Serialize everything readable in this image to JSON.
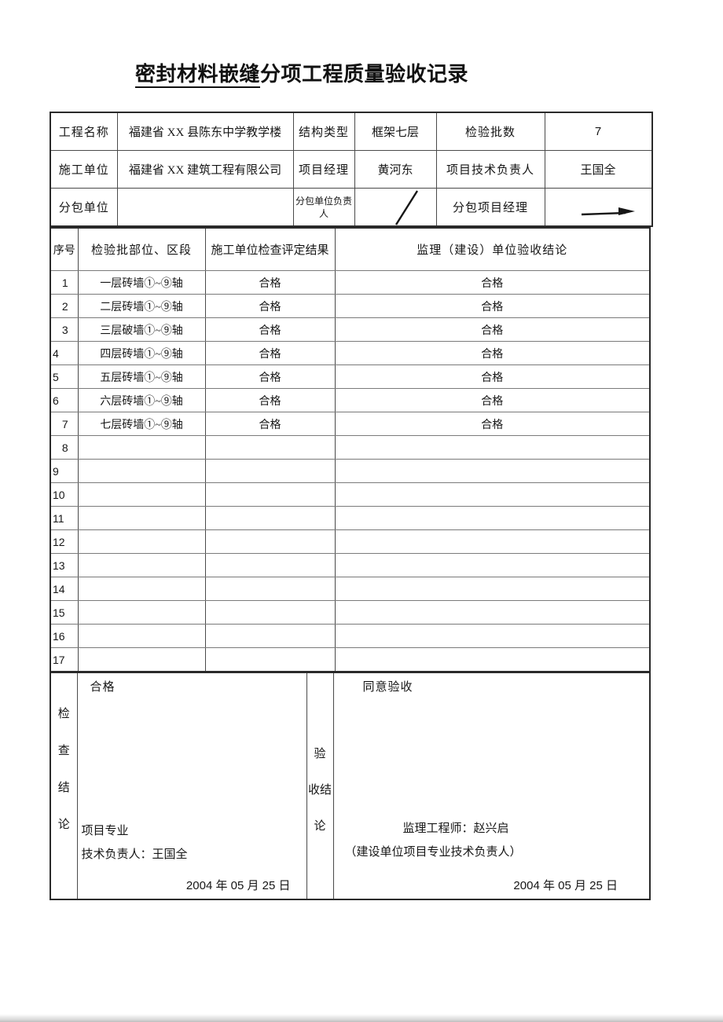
{
  "title": {
    "underlined": "密封材料嵌缝",
    "rest": "分项工程质量验收记录"
  },
  "info": {
    "row1": {
      "label1": "工程名称",
      "value1": "福建省 XX 县陈东中学教学楼",
      "label2": "结构类型",
      "value2": "框架七层",
      "label3": "检验批数",
      "value3": "7"
    },
    "row2": {
      "label1": "施工单位",
      "value1": "福建省 XX 建筑工程有限公司",
      "label2": "项目经理",
      "value2": "黄河东",
      "label3": "项目技术负责人",
      "value3": "王国全"
    },
    "row3": {
      "label1": "分包单位",
      "value1": "",
      "label2": "分包单位负责人",
      "value2": "",
      "label3": "分包项目经理",
      "value3": ""
    },
    "marks": {
      "subcontract_leader_mark": "hand-drawn slash",
      "subcontract_manager_mark": "hand-drawn stroke"
    }
  },
  "batch_table": {
    "headers": [
      "序号",
      "检验批部位、区段",
      "施工单位检查评定结果",
      "监理（建设）单位验收结论"
    ],
    "rows": [
      {
        "num": "1",
        "part": "一层砖墙①~⑨轴",
        "result": "合格",
        "conclusion": "合格",
        "num_align": "center"
      },
      {
        "num": "2",
        "part": "二层砖墙①~⑨轴",
        "result": "合格",
        "conclusion": "合格",
        "num_align": "center"
      },
      {
        "num": "3",
        "part": "三层破墙①~⑨轴",
        "result": "合格",
        "conclusion": "合格",
        "num_align": "center"
      },
      {
        "num": "4",
        "part": "四层砖墙①~⑨轴",
        "result": "合格",
        "conclusion": "合格",
        "num_align": "left"
      },
      {
        "num": "5",
        "part": "五层砖墙①~⑨轴",
        "result": "合格",
        "conclusion": "合格",
        "num_align": "left"
      },
      {
        "num": "6",
        "part": "六层砖墙①~⑨轴",
        "result": "合格",
        "conclusion": "合格",
        "num_align": "left"
      },
      {
        "num": "7",
        "part": "七层砖墙①~⑨轴",
        "result": "合格",
        "conclusion": "合格",
        "num_align": "center"
      },
      {
        "num": "8",
        "part": "",
        "result": "",
        "conclusion": "",
        "num_align": "center"
      },
      {
        "num": "9",
        "part": "",
        "result": "",
        "conclusion": "",
        "num_align": "left"
      },
      {
        "num": "10",
        "part": "",
        "result": "",
        "conclusion": "",
        "num_align": "left"
      },
      {
        "num": "11",
        "part": "",
        "result": "",
        "conclusion": "",
        "num_align": "left"
      },
      {
        "num": "12",
        "part": "",
        "result": "",
        "conclusion": "",
        "num_align": "left"
      },
      {
        "num": "13",
        "part": "",
        "result": "",
        "conclusion": "",
        "num_align": "left"
      },
      {
        "num": "14",
        "part": "",
        "result": "",
        "conclusion": "",
        "num_align": "left"
      },
      {
        "num": "15",
        "part": "",
        "result": "",
        "conclusion": "",
        "num_align": "left"
      },
      {
        "num": "16",
        "part": "",
        "result": "",
        "conclusion": "",
        "num_align": "left"
      },
      {
        "num": "17",
        "part": "",
        "result": "",
        "conclusion": "",
        "num_align": "left"
      }
    ]
  },
  "check_conclusion": {
    "label": "检查结论",
    "label_chars": [
      "检",
      "查",
      "结",
      "论"
    ],
    "result": "合格",
    "sign_title": "项目专业",
    "sign_name": "技术负责人：王国全",
    "date": "2004 年 05 月 25 日"
  },
  "acceptance_conclusion": {
    "label": "验收结论",
    "label_lines": [
      "验",
      "收结",
      "论"
    ],
    "result": "同意验收",
    "sign_name": "监理工程师：赵兴启",
    "sign_note": "（建设单位项目专业技术负责人）",
    "date": "2004 年 05 月 25 日"
  }
}
